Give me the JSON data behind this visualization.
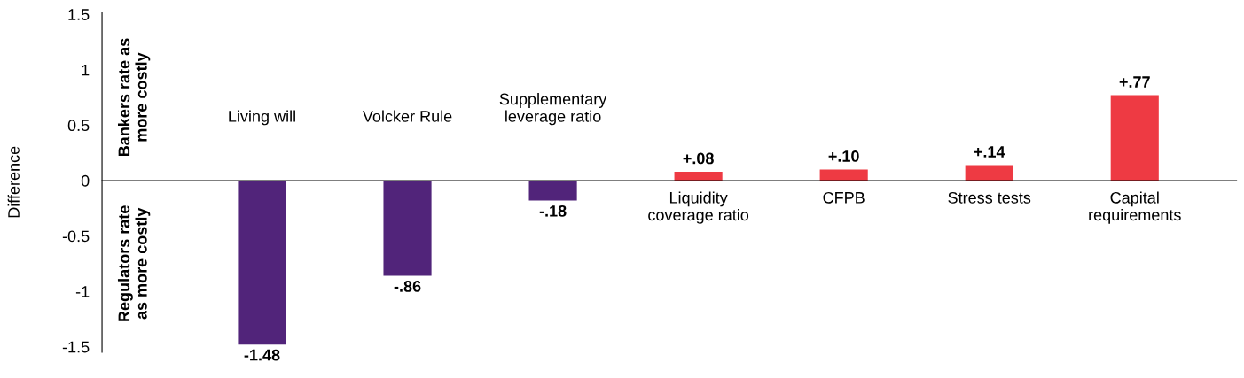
{
  "chart_data": {
    "type": "bar",
    "ylabel": "Difference",
    "categories": [
      "Living will",
      "Volcker Rule",
      "Supplementary\nleverage ratio",
      "Liquidity\ncoverage ratio",
      "CFPB",
      "Stress tests",
      "Capital\nrequirements"
    ],
    "values": [
      -1.48,
      -0.86,
      -0.18,
      0.08,
      0.1,
      0.14,
      0.77
    ],
    "colors": [
      "#51247a",
      "#51247a",
      "#51247a",
      "#ee3a43",
      "#ee3a43",
      "#ee3a43",
      "#ee3a43"
    ],
    "value_labels": [
      "-1.48",
      "-.86",
      "-.18",
      "+.08",
      "+.10",
      "+.14",
      "+.77"
    ],
    "ylim": [
      -1.55,
      1.52
    ],
    "yticks": [
      1.5,
      1,
      0.5,
      0,
      -0.5,
      -1,
      -1.5
    ],
    "annotations": [
      "Bankers rate as\nmore costly",
      "Regulators rate\nas more costly"
    ],
    "grid": false,
    "legend": false
  }
}
